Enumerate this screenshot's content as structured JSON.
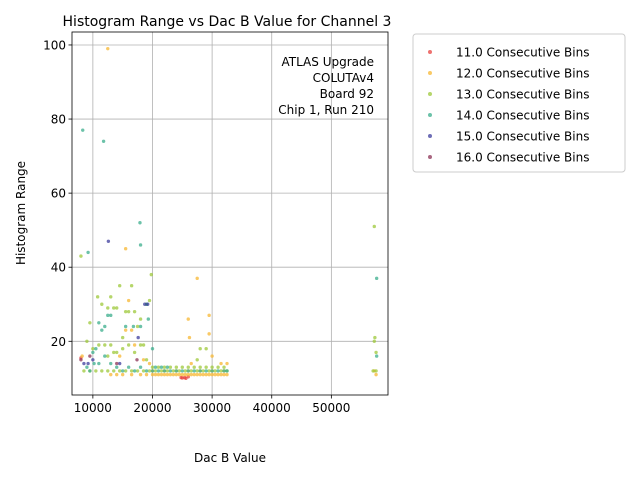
{
  "chart_data": {
    "type": "scatter",
    "title": "Histogram Range vs Dac B Value for Channel 3",
    "xlabel": "Dac B Value",
    "ylabel": "Histogram Range",
    "xlim": [
      6500,
      59500
    ],
    "ylim": [
      5.5,
      103.5
    ],
    "xticks": [
      10000,
      20000,
      30000,
      40000,
      50000
    ],
    "yticks": [
      20,
      40,
      60,
      80,
      100
    ],
    "grid": true,
    "legend_position": "outside-right",
    "annotation": [
      "ATLAS Upgrade",
      "COLUTAv4",
      "Board 92",
      "Chip 1, Run 210"
    ],
    "series": [
      {
        "name": "11.0 Consecutive Bins",
        "color": "#e8433f",
        "points": [
          [
            8000,
            15.5
          ],
          [
            24800,
            10.2
          ],
          [
            25000,
            10.1
          ],
          [
            25400,
            10.2
          ],
          [
            25600,
            10.0
          ],
          [
            26000,
            10.4
          ]
        ]
      },
      {
        "name": "12.0 Consecutive Bins",
        "color": "#f7b731",
        "points": [
          [
            8200,
            16
          ],
          [
            12500,
            99
          ],
          [
            15500,
            45
          ],
          [
            16000,
            31
          ],
          [
            26000,
            26
          ],
          [
            26200,
            21
          ],
          [
            27500,
            37
          ],
          [
            29500,
            27
          ],
          [
            29500,
            22
          ],
          [
            30000,
            16
          ],
          [
            13000,
            11
          ],
          [
            14000,
            11
          ],
          [
            15000,
            11
          ],
          [
            16500,
            11
          ],
          [
            18000,
            11
          ],
          [
            19000,
            11
          ],
          [
            20000,
            11
          ],
          [
            20500,
            11
          ],
          [
            21000,
            11
          ],
          [
            21500,
            11
          ],
          [
            22000,
            11
          ],
          [
            22500,
            11
          ],
          [
            23000,
            11
          ],
          [
            23500,
            11
          ],
          [
            24000,
            11
          ],
          [
            24500,
            11
          ],
          [
            25000,
            11
          ],
          [
            25500,
            11
          ],
          [
            26000,
            11
          ],
          [
            26500,
            11
          ],
          [
            27000,
            11
          ],
          [
            27500,
            11
          ],
          [
            28000,
            11
          ],
          [
            28500,
            11
          ],
          [
            29000,
            11
          ],
          [
            29500,
            11
          ],
          [
            30000,
            11
          ],
          [
            30500,
            11
          ],
          [
            31000,
            11
          ],
          [
            31500,
            11
          ],
          [
            32000,
            11
          ],
          [
            32500,
            11
          ],
          [
            20000,
            12
          ],
          [
            22000,
            12
          ],
          [
            24000,
            12
          ],
          [
            26000,
            12
          ],
          [
            28000,
            12
          ],
          [
            30000,
            12
          ],
          [
            32000,
            12
          ],
          [
            15500,
            23
          ],
          [
            16500,
            23
          ],
          [
            17000,
            19
          ],
          [
            14500,
            16
          ],
          [
            19500,
            14
          ],
          [
            18500,
            15
          ],
          [
            26500,
            14
          ],
          [
            31500,
            14
          ],
          [
            32500,
            14
          ],
          [
            57500,
            11
          ],
          [
            57200,
            12
          ]
        ]
      },
      {
        "name": "13.0 Consecutive Bins",
        "color": "#9dc83a",
        "points": [
          [
            8000,
            43
          ],
          [
            9500,
            25
          ],
          [
            10800,
            32
          ],
          [
            11500,
            30
          ],
          [
            12500,
            29
          ],
          [
            13000,
            32
          ],
          [
            13500,
            29
          ],
          [
            14000,
            29
          ],
          [
            14500,
            35
          ],
          [
            15000,
            21
          ],
          [
            15500,
            28
          ],
          [
            16000,
            28
          ],
          [
            16500,
            35
          ],
          [
            17000,
            28
          ],
          [
            17500,
            24
          ],
          [
            18000,
            26
          ],
          [
            18500,
            19
          ],
          [
            19000,
            30
          ],
          [
            19500,
            31
          ],
          [
            19800,
            38
          ],
          [
            27500,
            15
          ],
          [
            28000,
            18
          ],
          [
            29000,
            18
          ],
          [
            57200,
            51
          ],
          [
            57300,
            21
          ],
          [
            57200,
            20
          ],
          [
            57500,
            17
          ],
          [
            9000,
            20
          ],
          [
            10000,
            18
          ],
          [
            11000,
            19
          ],
          [
            12000,
            19
          ],
          [
            12500,
            16
          ],
          [
            13000,
            19
          ],
          [
            13500,
            17
          ],
          [
            14000,
            17
          ],
          [
            15000,
            18
          ],
          [
            16000,
            19
          ],
          [
            17000,
            17
          ],
          [
            18000,
            19
          ],
          [
            19000,
            15
          ],
          [
            20000,
            13
          ],
          [
            21000,
            13
          ],
          [
            22000,
            13
          ],
          [
            23000,
            13
          ],
          [
            24000,
            13
          ],
          [
            25000,
            13
          ],
          [
            26000,
            13
          ],
          [
            27000,
            13
          ],
          [
            28000,
            13
          ],
          [
            29000,
            13
          ],
          [
            30000,
            13
          ],
          [
            31000,
            13
          ],
          [
            32000,
            13
          ],
          [
            8500,
            12
          ],
          [
            9500,
            12
          ],
          [
            10500,
            12
          ],
          [
            11500,
            12
          ],
          [
            12500,
            12
          ],
          [
            13500,
            12
          ],
          [
            14500,
            12
          ],
          [
            15500,
            12
          ],
          [
            16500,
            12
          ],
          [
            17500,
            12
          ],
          [
            18500,
            12
          ],
          [
            19500,
            12
          ],
          [
            20500,
            12
          ],
          [
            21500,
            12
          ],
          [
            22500,
            12
          ],
          [
            23500,
            12
          ],
          [
            24500,
            12
          ],
          [
            25500,
            12
          ],
          [
            26500,
            12
          ],
          [
            27500,
            12
          ],
          [
            28500,
            12
          ],
          [
            29500,
            12
          ],
          [
            30500,
            12
          ],
          [
            31500,
            12
          ],
          [
            32500,
            12
          ],
          [
            57000,
            12
          ],
          [
            57500,
            12
          ]
        ]
      },
      {
        "name": "14.0 Consecutive Bins",
        "color": "#3bae8c",
        "points": [
          [
            8300,
            77
          ],
          [
            9200,
            44
          ],
          [
            11800,
            74
          ],
          [
            17900,
            52
          ],
          [
            18000,
            46
          ],
          [
            57600,
            37
          ],
          [
            10000,
            17
          ],
          [
            10500,
            18
          ],
          [
            11000,
            25
          ],
          [
            11500,
            23
          ],
          [
            12000,
            24
          ],
          [
            12500,
            27
          ],
          [
            13000,
            27
          ],
          [
            15500,
            24
          ],
          [
            16800,
            24
          ],
          [
            18000,
            24
          ],
          [
            19000,
            30
          ],
          [
            19300,
            26
          ],
          [
            20000,
            18
          ],
          [
            11000,
            14
          ],
          [
            12000,
            16
          ],
          [
            13000,
            14
          ],
          [
            14000,
            13
          ],
          [
            15000,
            12
          ],
          [
            16000,
            13
          ],
          [
            17000,
            12
          ],
          [
            18000,
            13
          ],
          [
            19000,
            12
          ],
          [
            20000,
            12
          ],
          [
            20500,
            13
          ],
          [
            21000,
            12
          ],
          [
            21500,
            13
          ],
          [
            22000,
            12
          ],
          [
            22500,
            13
          ],
          [
            23000,
            12
          ],
          [
            24000,
            12
          ],
          [
            25000,
            12
          ],
          [
            26000,
            12
          ],
          [
            27000,
            12
          ],
          [
            28000,
            12
          ],
          [
            29000,
            12
          ],
          [
            30000,
            12
          ],
          [
            31000,
            12
          ],
          [
            32000,
            12
          ],
          [
            32500,
            12
          ],
          [
            9000,
            13
          ],
          [
            9500,
            12
          ],
          [
            10200,
            14
          ],
          [
            57600,
            16
          ]
        ]
      },
      {
        "name": "15.0 Consecutive Bins",
        "color": "#3d3d9e",
        "points": [
          [
            12600,
            47
          ],
          [
            18700,
            30
          ],
          [
            19200,
            30
          ],
          [
            17600,
            21
          ],
          [
            8500,
            14
          ],
          [
            9200,
            14
          ],
          [
            10000,
            15
          ],
          [
            14500,
            14
          ]
        ]
      },
      {
        "name": "16.0 Consecutive Bins",
        "color": "#8c3355",
        "points": [
          [
            8000,
            15
          ],
          [
            9500,
            16
          ],
          [
            17400,
            15
          ],
          [
            14000,
            14
          ]
        ]
      }
    ]
  }
}
